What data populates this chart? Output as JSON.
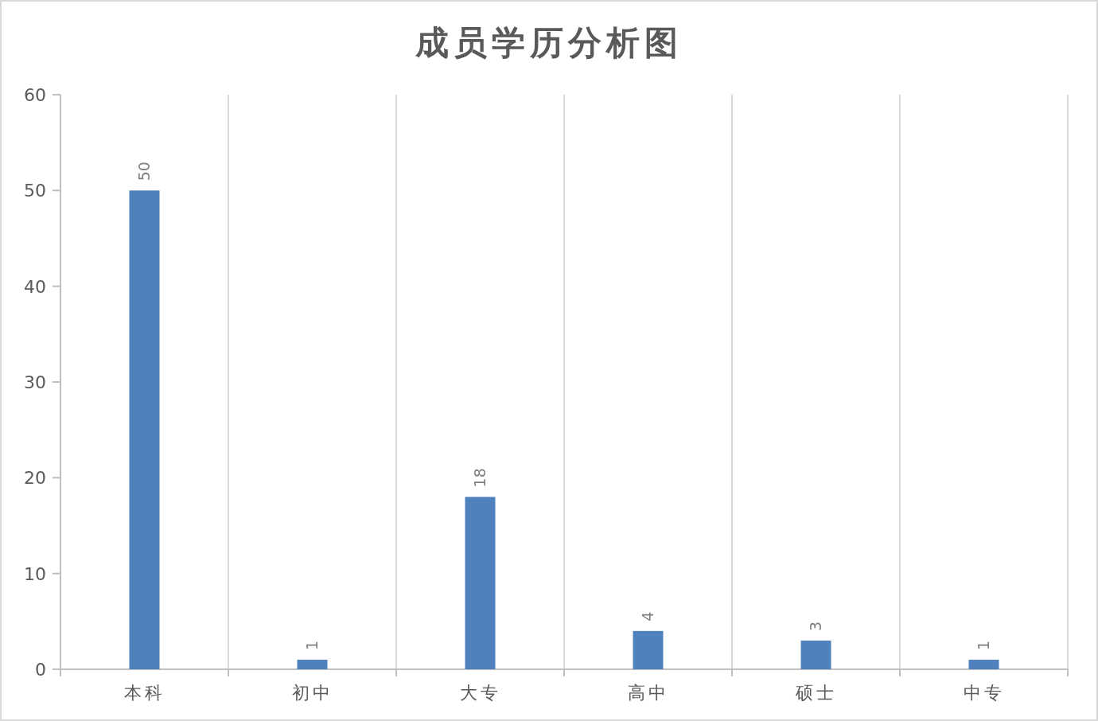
{
  "chart_data": {
    "type": "bar",
    "title": "成员学历分析图",
    "categories": [
      "本科",
      "初中",
      "大专",
      "高中",
      "硕士",
      "中专"
    ],
    "values": [
      50,
      1,
      18,
      4,
      3,
      1
    ],
    "color": "#4f81bd",
    "ylim": [
      0,
      60
    ],
    "yticks": [
      0,
      10,
      20,
      30,
      40,
      50,
      60
    ],
    "data_labels": true,
    "grid": "x"
  }
}
